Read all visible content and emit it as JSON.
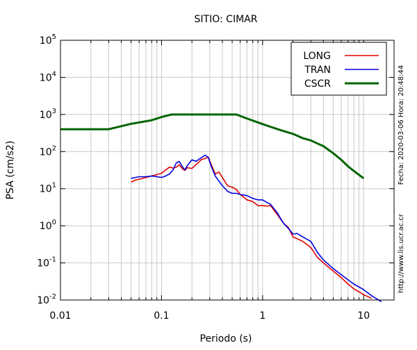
{
  "chart_data": {
    "type": "line",
    "title": "SITIO: CIMAR",
    "xlabel": "Periodo (s)",
    "ylabel": "PSA (cm/s2)",
    "x_scale": "log",
    "y_scale": "log",
    "xlim": [
      0.01,
      20
    ],
    "ylim": [
      0.01,
      100000
    ],
    "grid": true,
    "legend_position": "top-right",
    "x_ticks": [
      {
        "value": 0.01,
        "label": "0.01"
      },
      {
        "value": 0.1,
        "label": "0.1"
      },
      {
        "value": 1,
        "label": "1"
      },
      {
        "value": 10,
        "label": "10"
      }
    ],
    "y_ticks": [
      {
        "value": 0.01,
        "base": "10",
        "exp": "-2"
      },
      {
        "value": 0.1,
        "base": "10",
        "exp": "-1"
      },
      {
        "value": 1,
        "base": "10",
        "exp": "0"
      },
      {
        "value": 10,
        "base": "10",
        "exp": "1"
      },
      {
        "value": 100,
        "base": "10",
        "exp": "2"
      },
      {
        "value": 1000,
        "base": "10",
        "exp": "3"
      },
      {
        "value": 10000,
        "base": "10",
        "exp": "4"
      },
      {
        "value": 100000,
        "base": "10",
        "exp": "5"
      }
    ],
    "series": [
      {
        "name": "LONG",
        "color": "#e00000",
        "x": [
          0.05,
          0.055,
          0.06,
          0.07,
          0.08,
          0.09,
          0.1,
          0.11,
          0.12,
          0.13,
          0.14,
          0.15,
          0.16,
          0.17,
          0.18,
          0.2,
          0.22,
          0.25,
          0.27,
          0.29,
          0.31,
          0.34,
          0.37,
          0.4,
          0.45,
          0.5,
          0.55,
          0.6,
          0.7,
          0.8,
          0.9,
          1.0,
          1.1,
          1.2,
          1.4,
          1.6,
          1.8,
          2.0,
          2.2,
          2.5,
          3.0,
          3.5,
          4.0,
          5.0,
          6.0,
          7.0,
          8.0,
          10.0,
          12.0
        ],
        "y": [
          15,
          17,
          18,
          20,
          22,
          24,
          26,
          32,
          38,
          36,
          38,
          44,
          35,
          31,
          37,
          35,
          45,
          62,
          65,
          72,
          45,
          25,
          28,
          20,
          12,
          11,
          9.5,
          7,
          5,
          4.5,
          3.5,
          3.5,
          3.4,
          3.5,
          2.0,
          1.2,
          0.9,
          0.5,
          0.45,
          0.38,
          0.26,
          0.14,
          0.1,
          0.06,
          0.04,
          0.027,
          0.02,
          0.014,
          0.011
        ]
      },
      {
        "name": "TRAN",
        "color": "#0000e0",
        "x": [
          0.05,
          0.055,
          0.06,
          0.07,
          0.08,
          0.09,
          0.1,
          0.11,
          0.12,
          0.13,
          0.14,
          0.15,
          0.16,
          0.17,
          0.18,
          0.2,
          0.22,
          0.25,
          0.27,
          0.29,
          0.31,
          0.34,
          0.37,
          0.4,
          0.45,
          0.5,
          0.55,
          0.6,
          0.7,
          0.8,
          0.9,
          1.0,
          1.1,
          1.2,
          1.4,
          1.6,
          1.8,
          2.0,
          2.2,
          2.5,
          3.0,
          3.5,
          4.0,
          5.0,
          6.0,
          7.0,
          8.0,
          10.0,
          12.0,
          15.0
        ],
        "y": [
          19,
          20,
          21,
          21,
          22,
          21,
          20,
          22,
          25,
          32,
          50,
          54,
          40,
          32,
          42,
          60,
          55,
          70,
          80,
          70,
          40,
          22,
          16,
          12,
          8.5,
          7.5,
          7.5,
          7,
          6.5,
          5.5,
          5,
          5,
          4.3,
          3.8,
          2.2,
          1.2,
          0.85,
          0.6,
          0.62,
          0.5,
          0.38,
          0.19,
          0.12,
          0.07,
          0.048,
          0.035,
          0.027,
          0.019,
          0.013,
          0.009
        ]
      },
      {
        "name": "CSCR",
        "color": "#006400",
        "x": [
          0.01,
          0.03,
          0.05,
          0.08,
          0.1,
          0.125,
          0.2,
          0.3,
          0.4,
          0.55,
          0.7,
          1.0,
          1.5,
          2.0,
          2.5,
          3.0,
          3.5,
          4.0,
          5.0,
          6.0,
          7.0,
          8.0,
          10.0
        ],
        "y": [
          400,
          400,
          560,
          700,
          850,
          1000,
          1000,
          1000,
          1000,
          1000,
          780,
          550,
          380,
          300,
          230,
          200,
          165,
          140,
          90,
          60,
          40,
          30,
          19
        ]
      }
    ],
    "side_labels": {
      "date_stamp": "Fecha: 2020-03-06 Hora: 20:48:44",
      "source_url": "http://www.lis.ucr.ac.cr"
    }
  }
}
